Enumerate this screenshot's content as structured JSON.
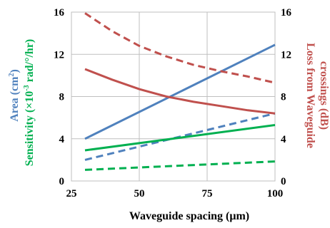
{
  "chart_data": {
    "type": "line",
    "xlabel": "Waveguide spacing (μm)",
    "ylabel_left": {
      "area": "Area (cm",
      "area_sup": "2",
      "area_close": ")",
      "sens": "Sensitivity (×10",
      "sens_sup": "-3",
      "sens_close": " rad/°/hr)"
    },
    "ylabel_right": {
      "line1": "Loss from Waveguide",
      "line2": "crossings (dB)"
    },
    "colors": {
      "area": "#4f81bd",
      "sensitivity": "#00b050",
      "loss": "#c0504d",
      "grid": "#bfbfbf"
    },
    "xlim": [
      25,
      100
    ],
    "xticks": [
      "25",
      "50",
      "75",
      "100"
    ],
    "xtick_values": [
      25,
      50,
      75,
      100
    ],
    "ylim_left": [
      0,
      16
    ],
    "ylim_right": [
      0,
      16
    ],
    "yticks_left": [
      "0",
      "4",
      "8",
      "12",
      "16"
    ],
    "yticks_right": [
      "0",
      "4",
      "8",
      "12",
      "16"
    ],
    "ytick_values": [
      0,
      4,
      8,
      12,
      16
    ],
    "grid": true,
    "series": [
      {
        "key": "area_solid",
        "color_key": "area",
        "dashed": false,
        "axis": "left",
        "x": [
          30,
          100
        ],
        "y": [
          4.0,
          12.9
        ]
      },
      {
        "key": "area_dashed",
        "color_key": "area",
        "dashed": true,
        "axis": "left",
        "x": [
          30,
          100
        ],
        "y": [
          2.0,
          6.4
        ]
      },
      {
        "key": "sens_solid",
        "color_key": "sensitivity",
        "dashed": false,
        "axis": "left",
        "x": [
          30,
          100
        ],
        "y": [
          2.9,
          5.3
        ]
      },
      {
        "key": "sens_dashed",
        "color_key": "sensitivity",
        "dashed": true,
        "axis": "left",
        "x": [
          30,
          100
        ],
        "y": [
          1.05,
          1.85
        ]
      },
      {
        "key": "loss_solid",
        "color_key": "loss",
        "dashed": false,
        "axis": "right",
        "x": [
          30,
          40,
          50,
          60,
          70,
          80,
          90,
          100
        ],
        "y": [
          10.6,
          9.6,
          8.7,
          8.0,
          7.5,
          7.1,
          6.7,
          6.4
        ]
      },
      {
        "key": "loss_dashed",
        "color_key": "loss",
        "dashed": true,
        "axis": "right",
        "x": [
          30,
          40,
          50,
          60,
          70,
          80,
          90,
          100
        ],
        "y": [
          15.9,
          14.2,
          12.8,
          11.8,
          11.0,
          10.4,
          9.9,
          9.3
        ]
      }
    ]
  }
}
